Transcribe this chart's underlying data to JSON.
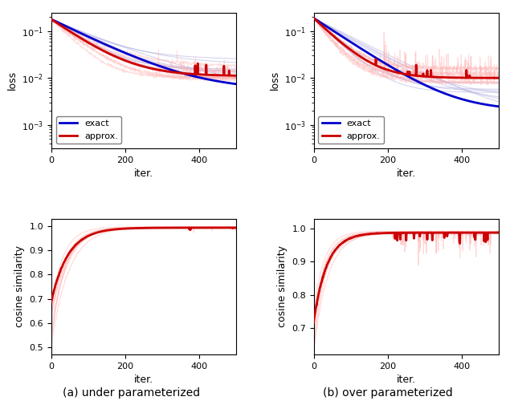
{
  "n_iters": 500,
  "n_runs": 8,
  "title_a": "(a) under parameterized",
  "title_b": "(b) over parameterized",
  "xlabel": "iter.",
  "ylabel_loss": "loss",
  "ylabel_cosine": "cosine similarity",
  "legend_exact": "exact",
  "legend_approx": "approx.",
  "color_exact": "#0000cc",
  "color_approx": "#cc0000",
  "color_exact_light": "#aaaadd",
  "color_approx_light": "#ffaaaa",
  "loss_ylim_log": [
    -3.5,
    -0.6
  ],
  "loss_yticks": [
    0.001,
    0.01,
    0.1
  ],
  "cosine_ylim_a": [
    0.47,
    1.03
  ],
  "cosine_ylim_b": [
    0.62,
    1.03
  ],
  "cosine_yticks_a": [
    0.5,
    0.6,
    0.7,
    0.8,
    0.9,
    1.0
  ],
  "cosine_yticks_b": [
    0.7,
    0.8,
    0.9,
    1.0
  ],
  "xticks": [
    0,
    200,
    400
  ],
  "seed": 42
}
